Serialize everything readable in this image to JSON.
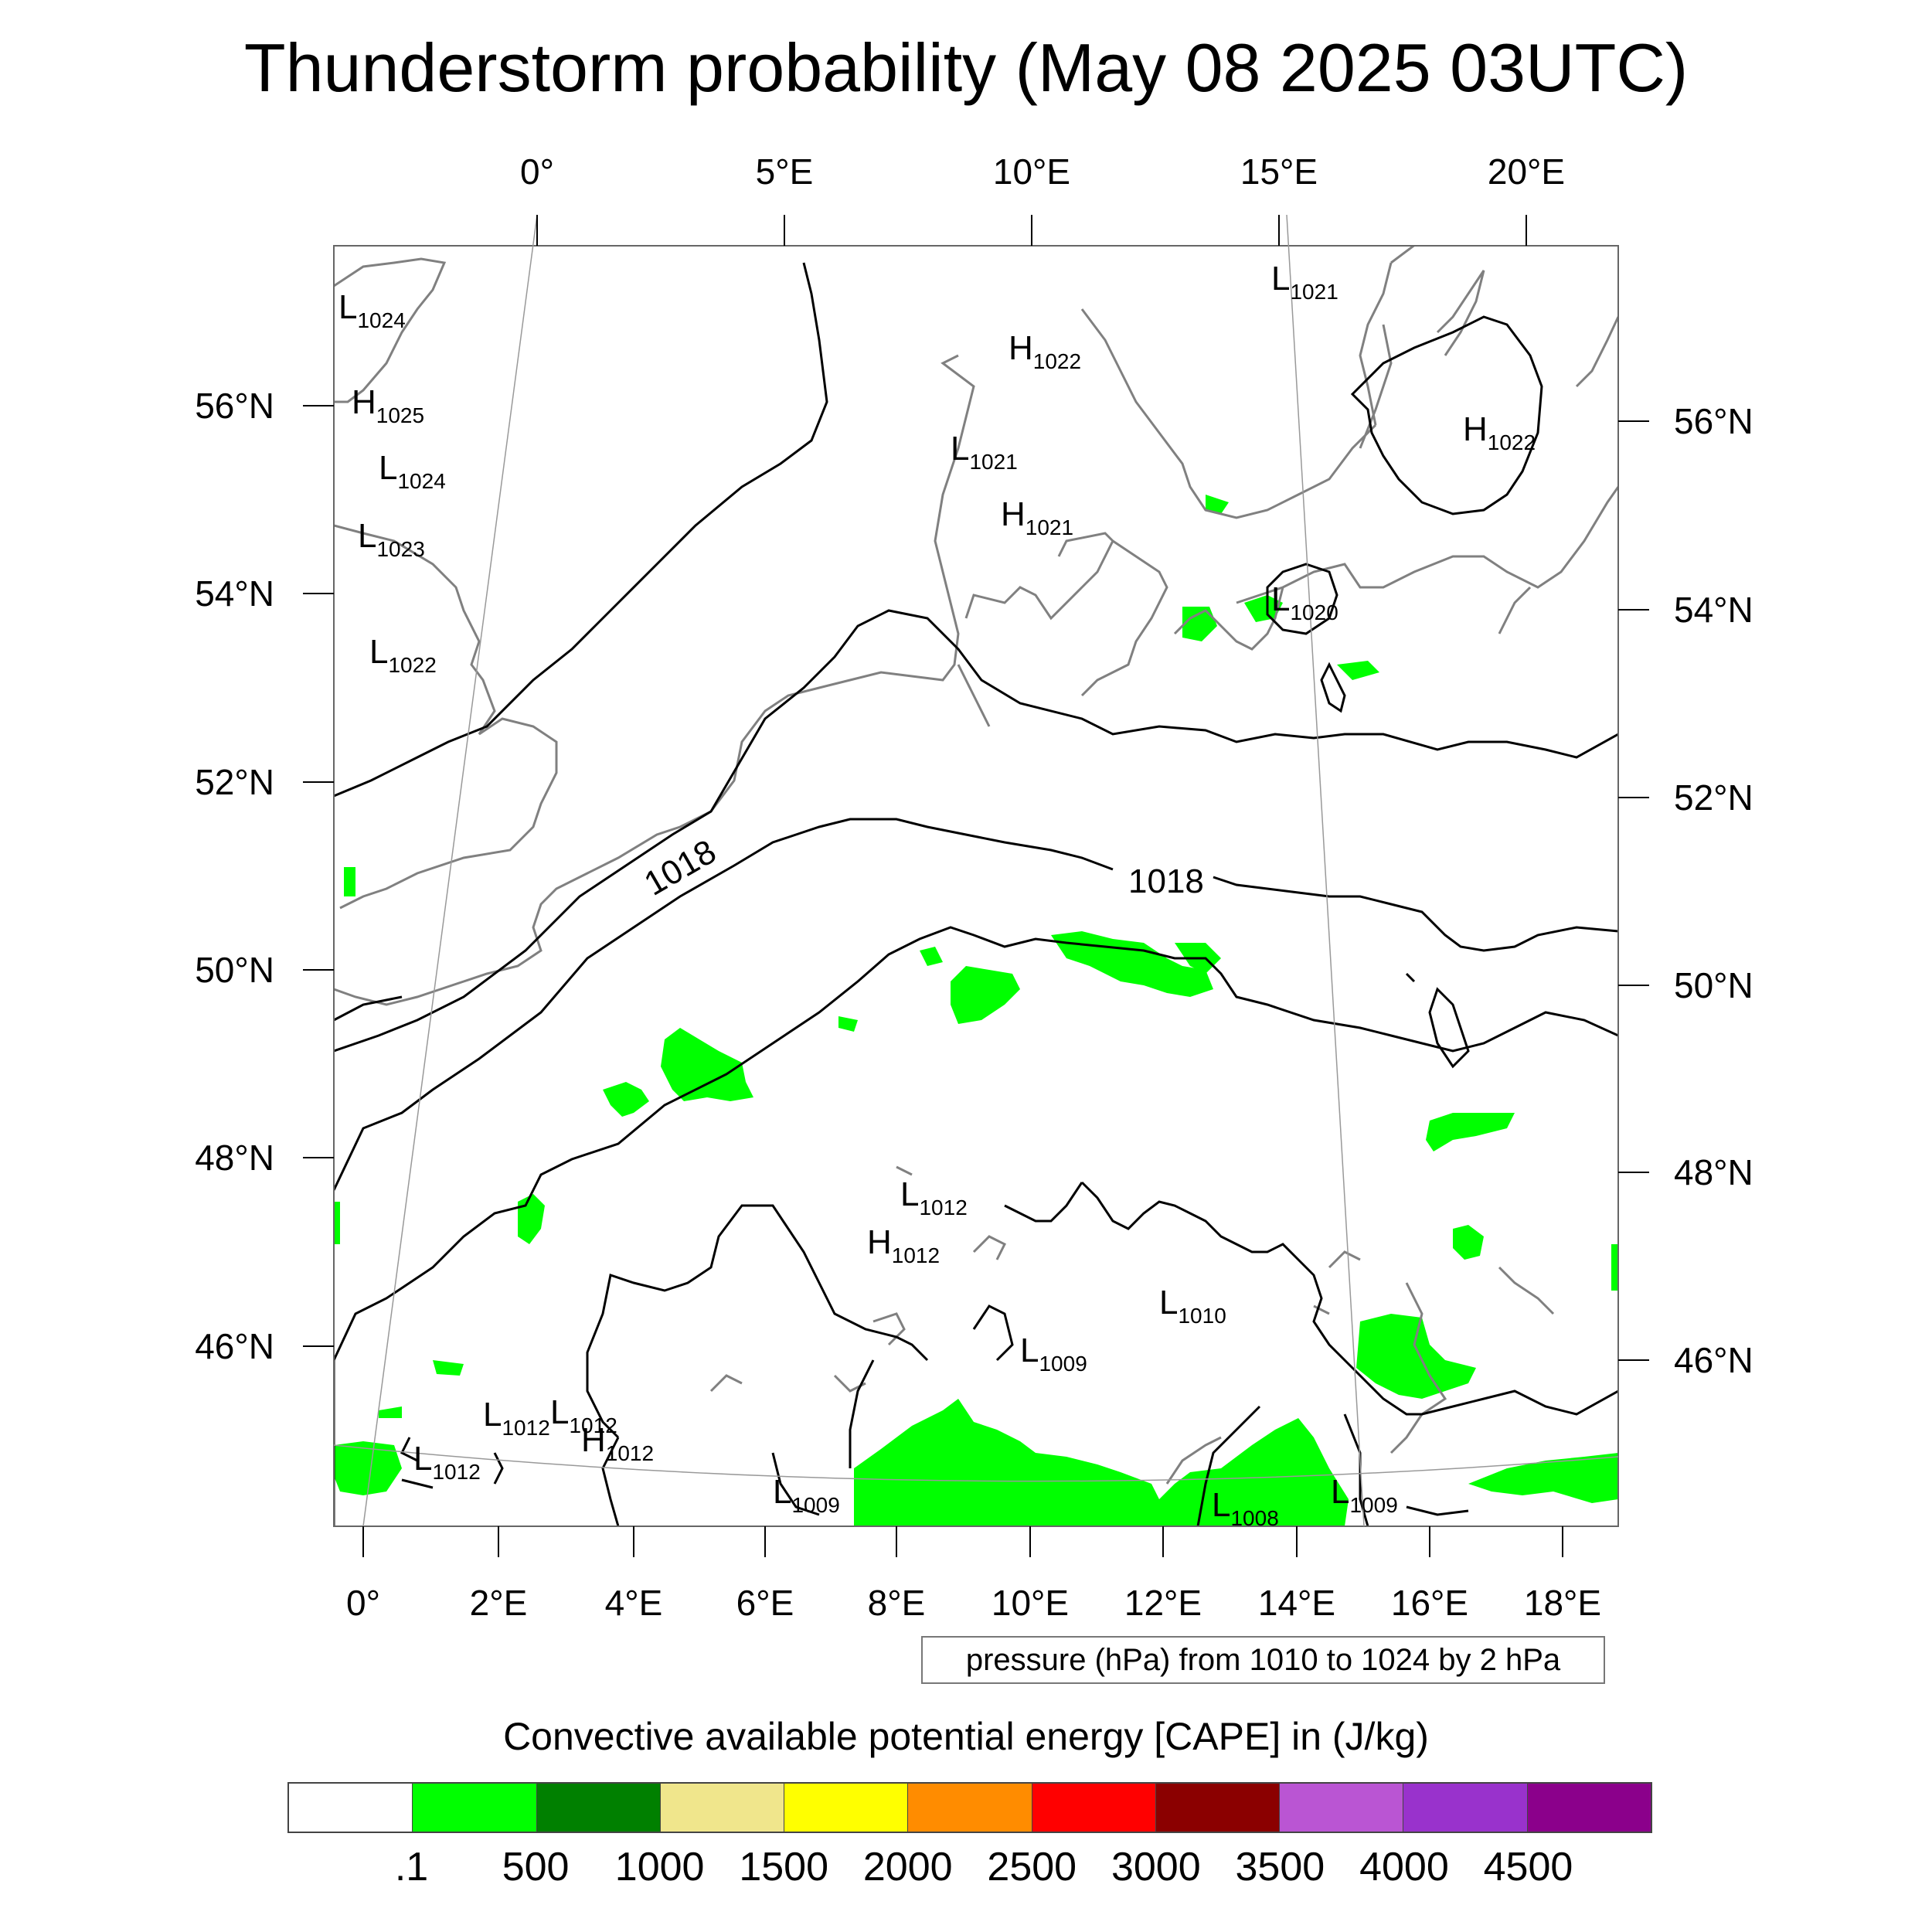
{
  "title": "Thunderstorm probability (May 08 2025 03UTC)",
  "top_longitude_labels": [
    "0°",
    "5°E",
    "10°E",
    "15°E",
    "20°E"
  ],
  "bottom_longitude_labels": [
    "0°",
    "2°E",
    "4°E",
    "6°E",
    "8°E",
    "10°E",
    "12°E",
    "14°E",
    "16°E",
    "18°E"
  ],
  "left_latitude_labels": [
    "56°N",
    "54°N",
    "52°N",
    "50°N",
    "48°N",
    "46°N"
  ],
  "right_latitude_labels": [
    "56°N",
    "54°N",
    "52°N",
    "50°N",
    "48°N",
    "46°N"
  ],
  "contour_labels": [
    "1018",
    "1018"
  ],
  "pressure_centers": [
    {
      "type": "L",
      "value": "1024"
    },
    {
      "type": "H",
      "value": "1025"
    },
    {
      "type": "L",
      "value": "1024"
    },
    {
      "type": "L",
      "value": "1023"
    },
    {
      "type": "L",
      "value": "1022"
    },
    {
      "type": "H",
      "value": "1022"
    },
    {
      "type": "L",
      "value": "1021"
    },
    {
      "type": "H",
      "value": "1021"
    },
    {
      "type": "L",
      "value": "1021"
    },
    {
      "type": "H",
      "value": "1022"
    },
    {
      "type": "L",
      "value": "1020"
    },
    {
      "type": "L",
      "value": "1012"
    },
    {
      "type": "H",
      "value": "1012"
    },
    {
      "type": "L",
      "value": "1010"
    },
    {
      "type": "L",
      "value": "1009"
    },
    {
      "type": "L",
      "value": "1012"
    },
    {
      "type": "L",
      "value": "1012"
    },
    {
      "type": "H",
      "value": "1012"
    },
    {
      "type": "L",
      "value": "1012"
    },
    {
      "type": "L",
      "value": "1009"
    },
    {
      "type": "L",
      "value": "1008"
    },
    {
      "type": "L",
      "value": "1009"
    }
  ],
  "contour_info": "pressure (hPa) from 1010 to 1024 by 2 hPa",
  "legend": {
    "title": "Convective available potential energy [CAPE] in (J/kg)",
    "colors": [
      "#ffffff",
      "#00ff00",
      "#008000",
      "#f0e68c",
      "#ffff00",
      "#ff8c00",
      "#ff0000",
      "#8b0000",
      "#ba55d3",
      "#9932cc",
      "#8b008b"
    ],
    "labels": [
      ".1",
      "500",
      "1000",
      "1500",
      "2000",
      "2500",
      "3000",
      "3500",
      "4000",
      "4500"
    ]
  },
  "colors": {
    "cape_low": "#00ff00",
    "coastline": "#808080",
    "isobar": "#000000"
  }
}
